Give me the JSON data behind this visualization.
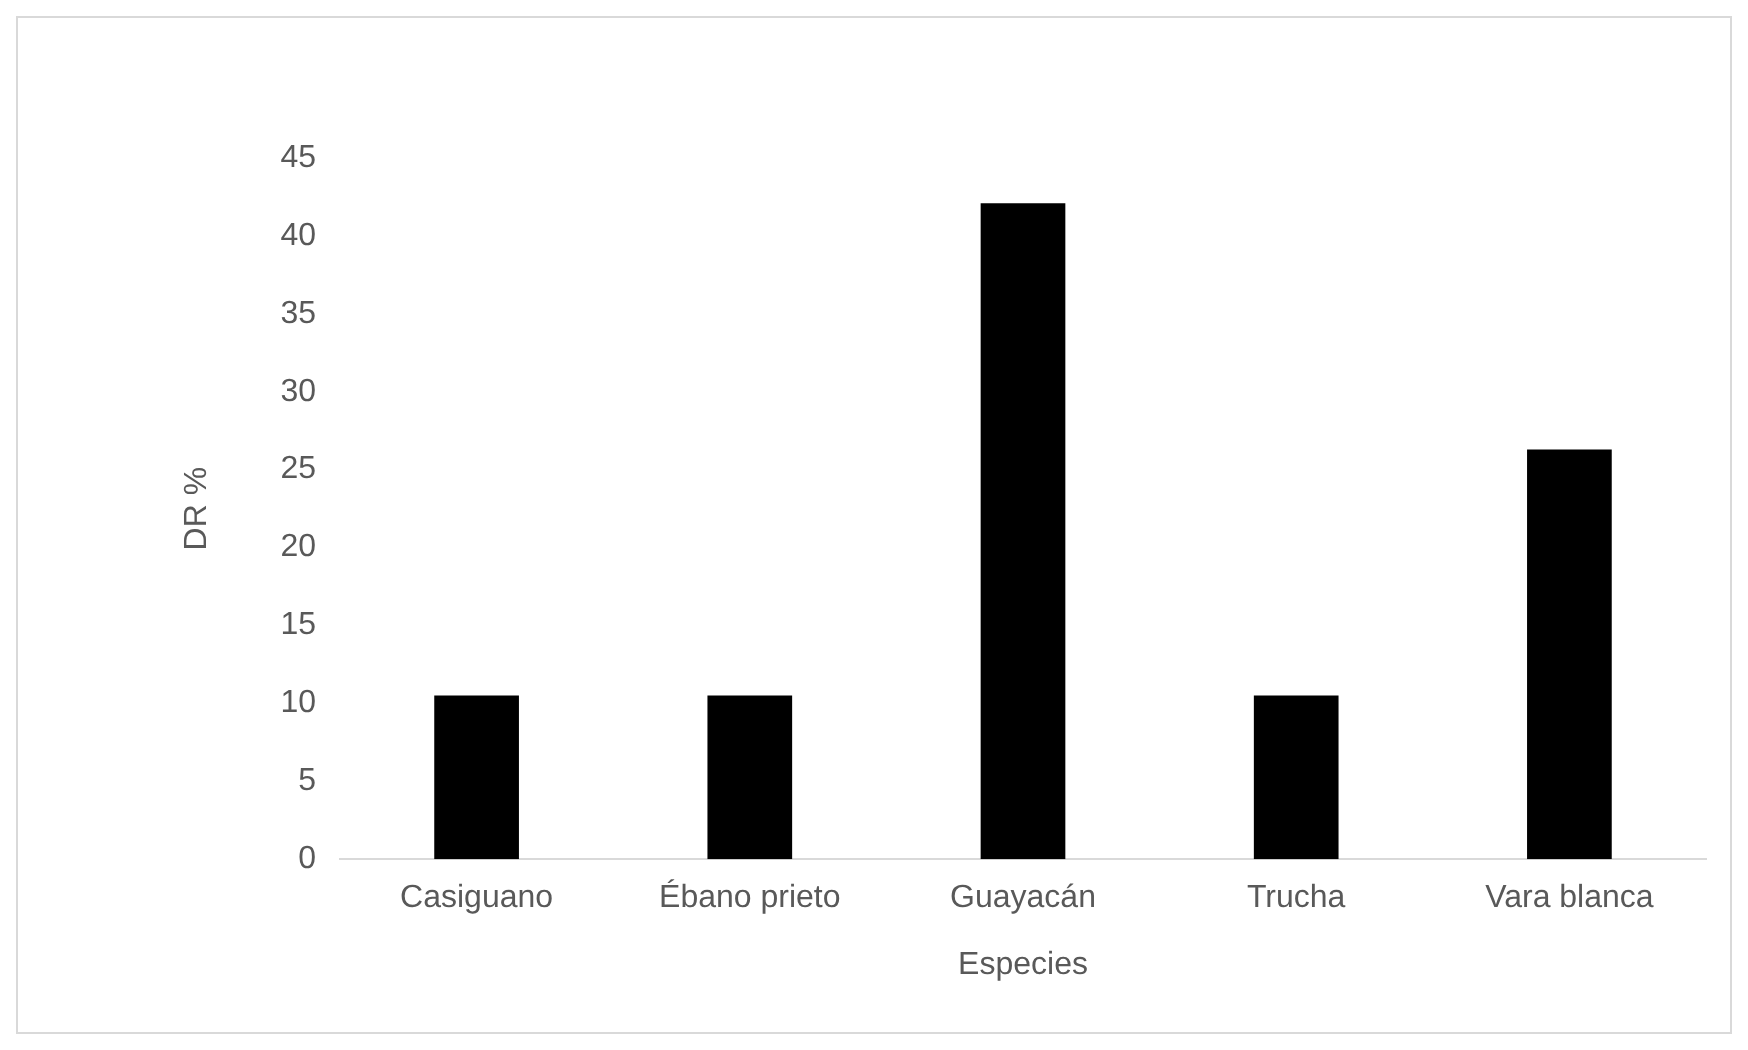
{
  "chart_data": {
    "type": "bar",
    "xlabel": "Especies",
    "ylabel": "DR %",
    "categories": [
      "Casiguano",
      "Ébano prieto",
      "Guayacán",
      "Trucha",
      "Vara blanca"
    ],
    "values": [
      10.5,
      10.5,
      42.1,
      10.5,
      26.3
    ],
    "color": "#000000",
    "ylim": [
      0,
      45
    ],
    "yticks": [
      0,
      5,
      10,
      15,
      20,
      25,
      30,
      35,
      40,
      45
    ],
    "grid": false,
    "legend": false
  }
}
